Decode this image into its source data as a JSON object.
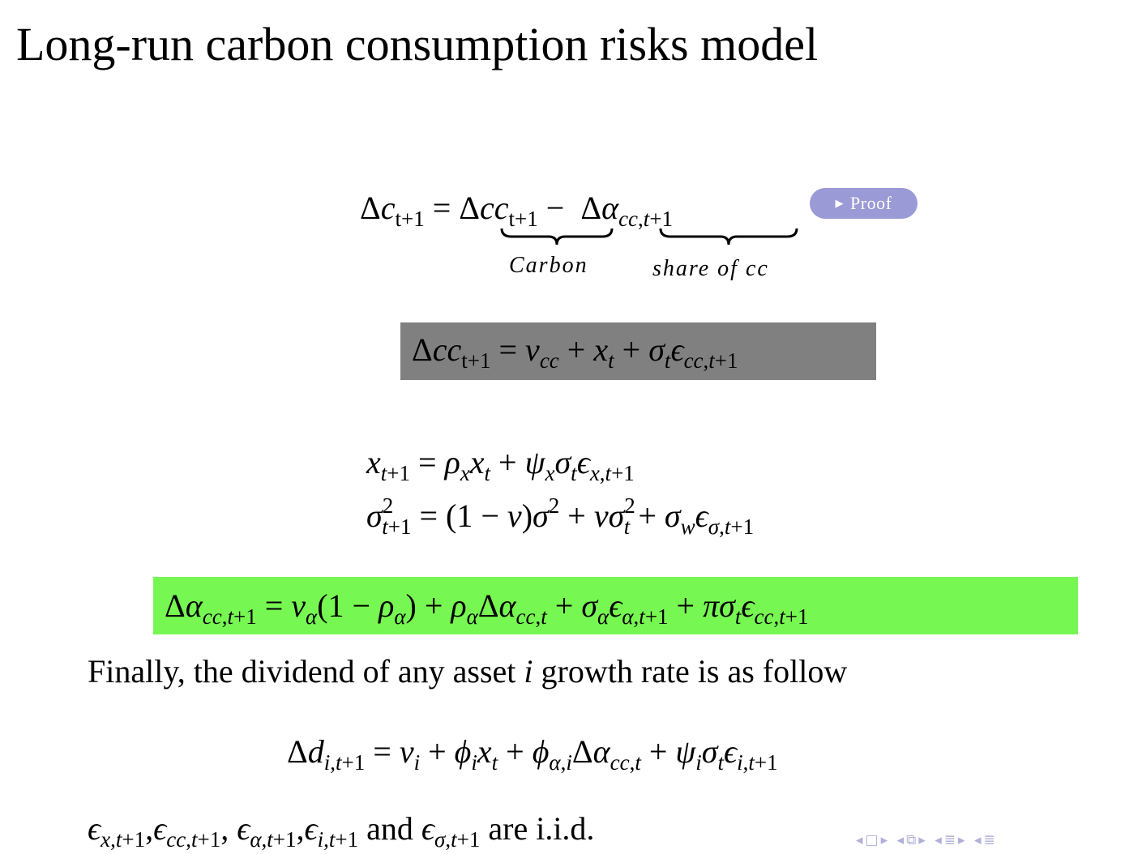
{
  "slide": {
    "title": "Long-run carbon consumption risks model"
  },
  "equation_decomposition": {
    "brace_label_carbon": "Carbon",
    "brace_label_share": "share of cc",
    "proof_button_label": "Proof"
  },
  "prose": {
    "finally_before": "Finally, the dividend of any asset ",
    "finally_var": "i",
    "finally_after": " growth rate is as follow",
    "and_word": "and",
    "iid_text": "are i.i.d."
  },
  "navigation": {
    "prev_slide_icon": "triangle-left-icon",
    "frame_icon": "frame-icon",
    "next_slide_icon": "triangle-right-icon",
    "subsection_icon": "subsection-icon",
    "section_icon": "section-icon",
    "outline_icon": "outline-icon"
  },
  "colors": {
    "gray_box": "#808080",
    "green_box": "#77f751",
    "proof_button": "#9a9ad6",
    "nav_symbols": "#b0b0d8"
  }
}
